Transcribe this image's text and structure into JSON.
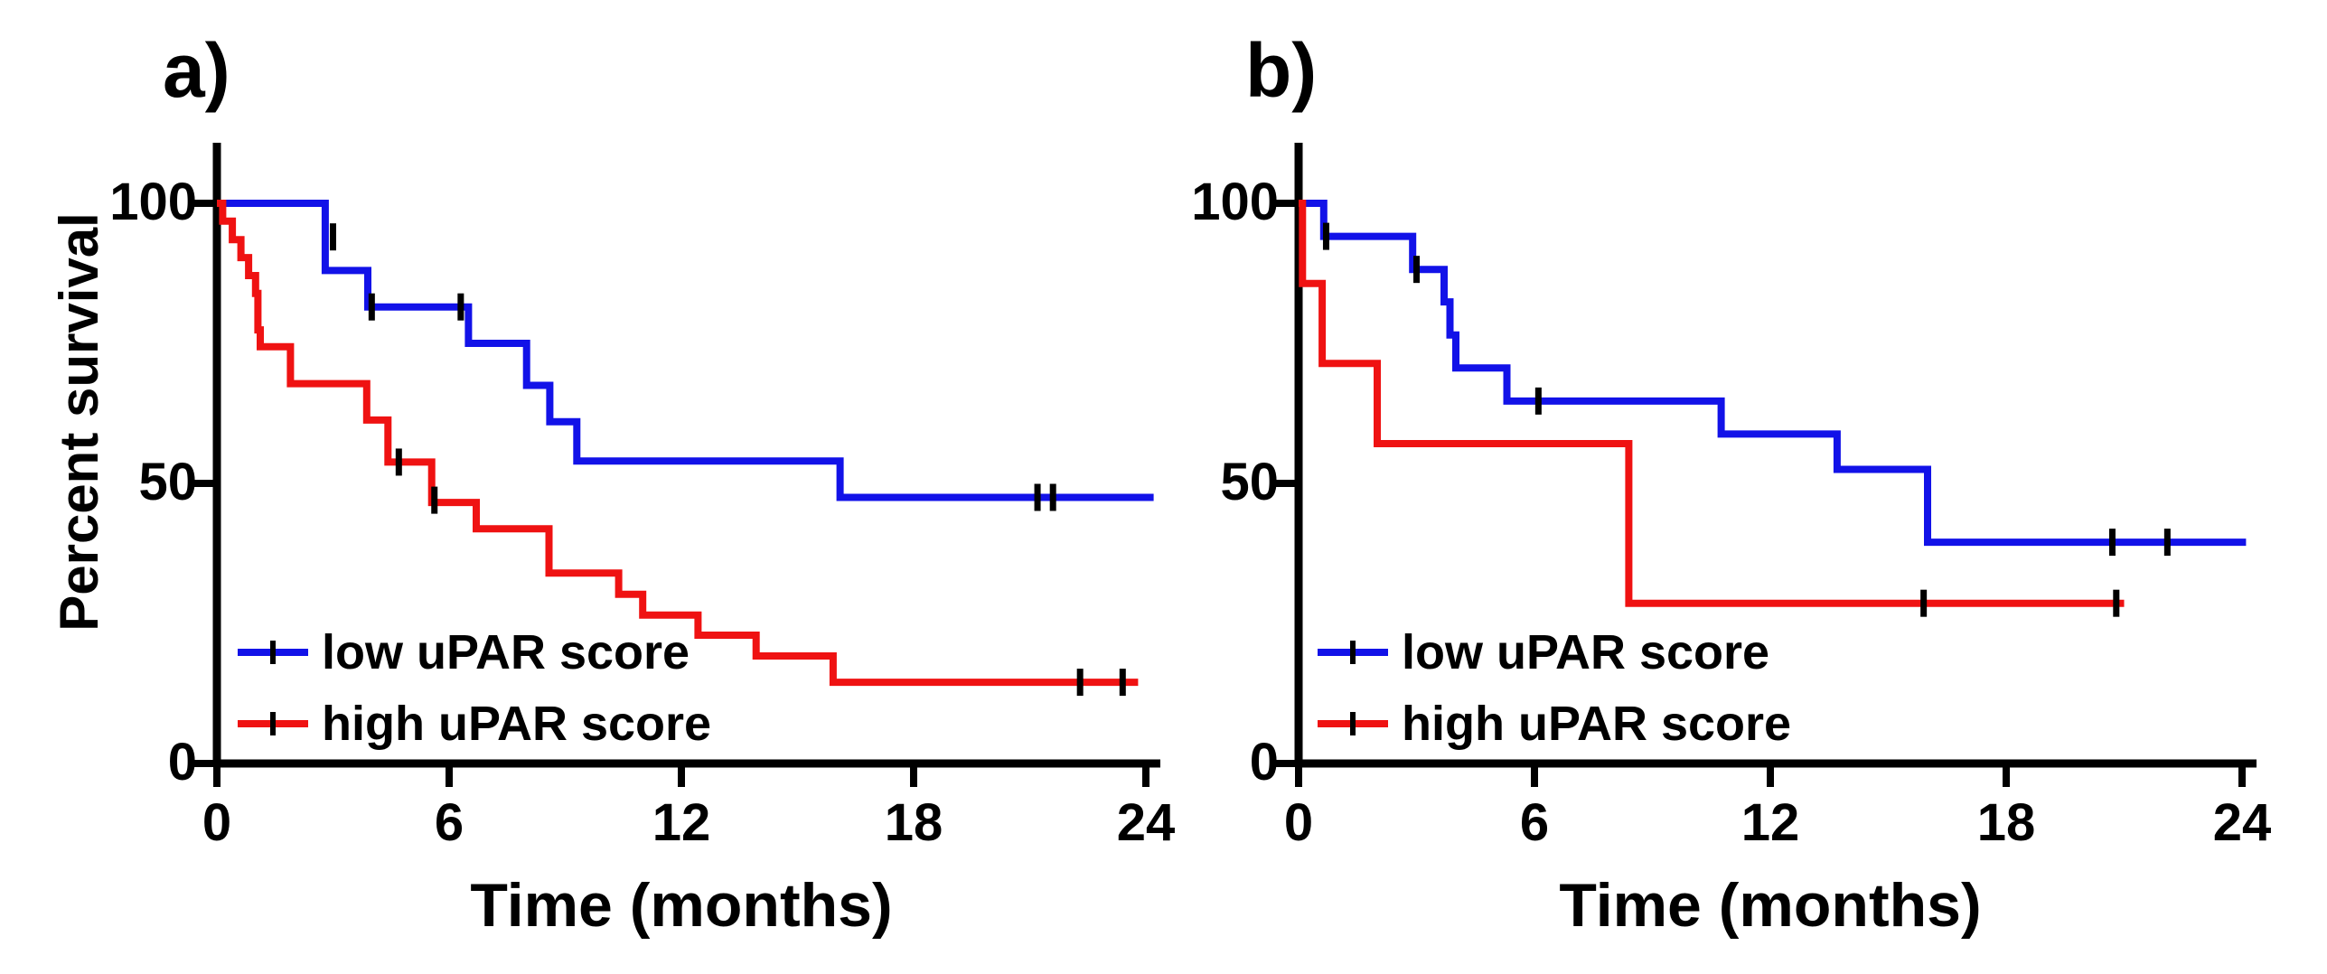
{
  "figure": {
    "background": "#ffffff",
    "colors": {
      "low_upar": "#1212e8",
      "high_upar": "#ef1212",
      "axis": "#000000",
      "censor_tick": "#000000"
    },
    "y_axis_title": "Percent survival",
    "x_axis_title": "Time (months)",
    "legend": {
      "low_label": "low uPAR score",
      "high_label": "high uPAR score"
    },
    "panels": [
      {
        "letter": "a)",
        "y_tick_labels": [
          "100",
          "50",
          "0"
        ],
        "x_tick_labels": [
          "0",
          "6",
          "12",
          "18",
          "24"
        ]
      },
      {
        "letter": "b)",
        "y_tick_labels": [
          "100",
          "50",
          "0"
        ],
        "x_tick_labels": [
          "0",
          "6",
          "12",
          "18",
          "24"
        ]
      }
    ]
  },
  "chart_data": [
    {
      "type": "line",
      "subtype": "kaplan-meier-step",
      "panel": "a",
      "title": "a)",
      "xlabel": "Time (months)",
      "ylabel": "Percent survival",
      "xlim": [
        0,
        24
      ],
      "ylim": [
        0,
        100
      ],
      "x_ticks": [
        0,
        6,
        12,
        18,
        24
      ],
      "y_ticks": [
        0,
        50,
        100
      ],
      "grid": false,
      "legend_position": "lower-left",
      "series": [
        {
          "name": "low uPAR score",
          "color": "#1212e8",
          "points": [
            [
              0,
              100
            ],
            [
              2.8,
              100
            ],
            [
              2.8,
              88
            ],
            [
              3.9,
              88
            ],
            [
              3.9,
              81.5
            ],
            [
              6.5,
              81.5
            ],
            [
              6.5,
              75
            ],
            [
              8.0,
              75
            ],
            [
              8.0,
              67.5
            ],
            [
              8.6,
              67.5
            ],
            [
              8.6,
              61
            ],
            [
              9.3,
              61
            ],
            [
              9.3,
              54
            ],
            [
              16.1,
              54
            ],
            [
              16.1,
              47.5
            ],
            [
              24.2,
              47.5
            ]
          ],
          "censor_marks": [
            [
              3.0,
              94
            ],
            [
              4.0,
              81.5
            ],
            [
              6.3,
              81.5
            ],
            [
              21.2,
              47.5
            ],
            [
              21.6,
              47.5
            ]
          ]
        },
        {
          "name": "high uPAR score",
          "color": "#ef1212",
          "points": [
            [
              0,
              100
            ],
            [
              0.15,
              100
            ],
            [
              0.15,
              96.8
            ],
            [
              0.4,
              96.8
            ],
            [
              0.4,
              93.5
            ],
            [
              0.62,
              93.5
            ],
            [
              0.62,
              90.3
            ],
            [
              0.82,
              90.3
            ],
            [
              0.82,
              87.1
            ],
            [
              1.0,
              87.1
            ],
            [
              1.0,
              83.9
            ],
            [
              1.06,
              83.9
            ],
            [
              1.06,
              77.4
            ],
            [
              1.12,
              77.4
            ],
            [
              1.12,
              74.4
            ],
            [
              1.9,
              74.4
            ],
            [
              1.9,
              67.8
            ],
            [
              3.87,
              67.8
            ],
            [
              3.87,
              61.3
            ],
            [
              4.42,
              61.3
            ],
            [
              4.42,
              53.8
            ],
            [
              5.55,
              53.8
            ],
            [
              5.55,
              46.6
            ],
            [
              6.7,
              46.6
            ],
            [
              6.7,
              41.9
            ],
            [
              8.58,
              41.9
            ],
            [
              8.58,
              34
            ],
            [
              10.38,
              34
            ],
            [
              10.38,
              30.2
            ],
            [
              11.0,
              30.2
            ],
            [
              11.0,
              26.5
            ],
            [
              12.43,
              26.5
            ],
            [
              12.43,
              22.9
            ],
            [
              13.93,
              22.9
            ],
            [
              13.93,
              19.2
            ],
            [
              15.92,
              19.2
            ],
            [
              15.92,
              14.5
            ],
            [
              23.8,
              14.5
            ]
          ],
          "censor_marks": [
            [
              4.7,
              53.8
            ],
            [
              5.62,
              47
            ],
            [
              22.3,
              14.5
            ],
            [
              23.4,
              14.5
            ]
          ]
        }
      ]
    },
    {
      "type": "line",
      "subtype": "kaplan-meier-step",
      "panel": "b",
      "title": "b)",
      "xlabel": "Time (months)",
      "ylabel": "Percent survival",
      "xlim": [
        0,
        24
      ],
      "ylim": [
        0,
        100
      ],
      "x_ticks": [
        0,
        6,
        12,
        18,
        24
      ],
      "y_ticks": [
        0,
        50,
        100
      ],
      "grid": false,
      "legend_position": "lower-left",
      "series": [
        {
          "name": "low uPAR score",
          "color": "#1212e8",
          "points": [
            [
              0,
              100
            ],
            [
              0.64,
              100
            ],
            [
              0.64,
              94.1
            ],
            [
              2.9,
              94.1
            ],
            [
              2.9,
              88.2
            ],
            [
              3.7,
              88.2
            ],
            [
              3.7,
              82.4
            ],
            [
              3.85,
              82.4
            ],
            [
              3.85,
              76.5
            ],
            [
              4.0,
              76.5
            ],
            [
              4.0,
              70.6
            ],
            [
              5.3,
              70.6
            ],
            [
              5.3,
              64.7
            ],
            [
              10.75,
              64.7
            ],
            [
              10.75,
              58.8
            ],
            [
              13.7,
              58.8
            ],
            [
              13.7,
              52.5
            ],
            [
              16.0,
              52.5
            ],
            [
              16.0,
              39.5
            ],
            [
              24.1,
              39.5
            ]
          ],
          "censor_marks": [
            [
              0.7,
              94.1
            ],
            [
              3.0,
              88.2
            ],
            [
              6.1,
              64.7
            ],
            [
              20.7,
              39.5
            ],
            [
              22.1,
              39.5
            ]
          ]
        },
        {
          "name": "high uPAR score",
          "color": "#ef1212",
          "points": [
            [
              0,
              100
            ],
            [
              0.1,
              100
            ],
            [
              0.1,
              85.7
            ],
            [
              0.6,
              85.7
            ],
            [
              0.6,
              71.4
            ],
            [
              2.0,
              71.4
            ],
            [
              2.0,
              57.1
            ],
            [
              8.4,
              57.1
            ],
            [
              8.4,
              28.6
            ],
            [
              21.0,
              28.6
            ]
          ],
          "censor_marks": [
            [
              15.9,
              28.6
            ],
            [
              20.8,
              28.6
            ]
          ]
        }
      ]
    }
  ]
}
